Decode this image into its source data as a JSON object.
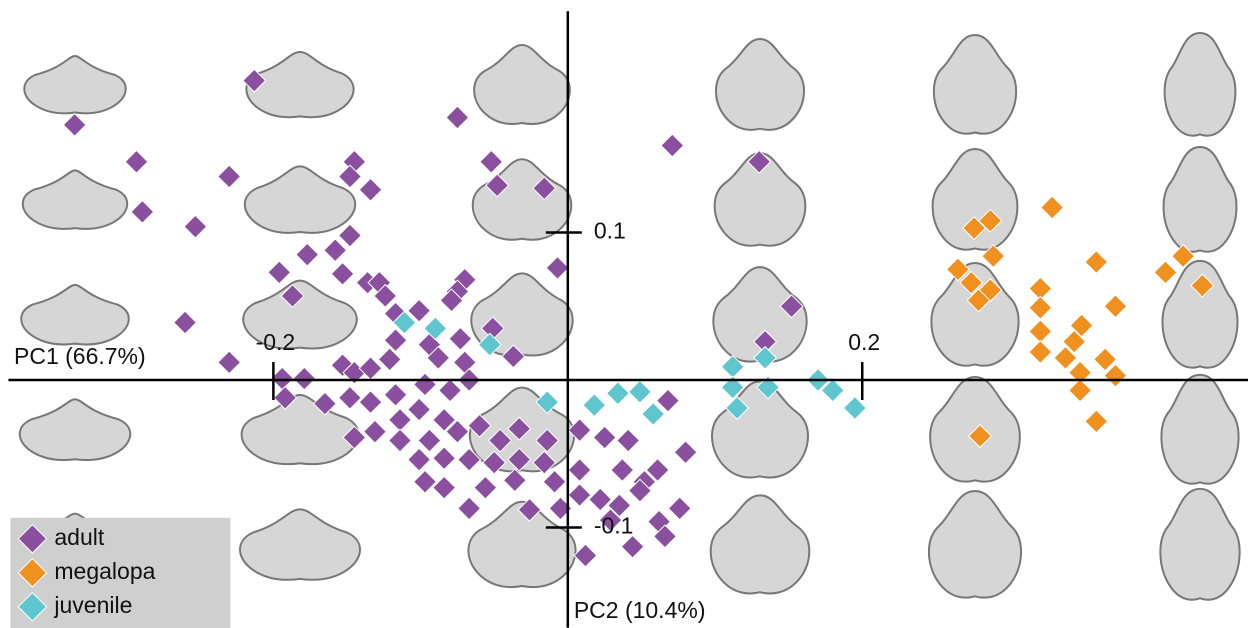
{
  "chart_data": {
    "type": "scatter",
    "xlabel": "PC1 (66.7%)",
    "ylabel": "PC2 (10.4%)",
    "xlim": [
      -0.38,
      0.46
    ],
    "ylim": [
      -0.168,
      0.25
    ],
    "xticks": [
      -0.2,
      0.2
    ],
    "yticks": [
      -0.1,
      0.1
    ],
    "legend": "lower left",
    "series": [
      {
        "name": "adult",
        "color": "#8b4f9f",
        "x": [
          -0.335,
          -0.213,
          -0.075,
          0.071,
          0.13,
          -0.293,
          -0.23,
          -0.289,
          -0.253,
          -0.145,
          -0.148,
          -0.134,
          -0.052,
          -0.048,
          -0.016,
          -0.148,
          -0.158,
          -0.177,
          -0.196,
          -0.153,
          -0.187,
          -0.26,
          -0.23,
          -0.136,
          -0.128,
          -0.124,
          -0.117,
          -0.101,
          -0.07,
          -0.075,
          -0.079,
          -0.007,
          -0.051,
          -0.037,
          0.152,
          0.134,
          0.068,
          -0.117,
          -0.094,
          -0.073,
          -0.121,
          -0.088,
          -0.07,
          -0.153,
          -0.145,
          -0.134,
          -0.194,
          -0.179,
          -0.192,
          -0.165,
          -0.148,
          -0.134,
          -0.117,
          -0.097,
          -0.08,
          -0.067,
          -0.114,
          -0.101,
          -0.084,
          -0.131,
          -0.145,
          -0.114,
          -0.094,
          -0.075,
          -0.06,
          -0.046,
          -0.033,
          -0.014,
          0.008,
          0.025,
          0.041,
          -0.101,
          -0.084,
          -0.067,
          -0.05,
          -0.033,
          -0.016,
          -0.097,
          -0.084,
          -0.056,
          -0.036,
          -0.009,
          0.008,
          0.037,
          0.061,
          0.08,
          0.052,
          -0.067,
          -0.005,
          0.008,
          0.022,
          0.035,
          0.049,
          0.076,
          0.062,
          0.029,
          0.066,
          0.044,
          0.012,
          -0.026
        ],
        "y": [
          0.173,
          0.203,
          0.178,
          0.159,
          0.148,
          0.148,
          0.138,
          0.114,
          0.104,
          0.148,
          0.138,
          0.129,
          0.148,
          0.132,
          0.13,
          0.098,
          0.088,
          0.085,
          0.073,
          0.072,
          0.057,
          0.039,
          0.012,
          0.066,
          0.066,
          0.057,
          0.045,
          0.047,
          0.068,
          0.06,
          0.054,
          0.076,
          0.035,
          0.016,
          0.05,
          0.026,
          -0.014,
          0.027,
          0.024,
          0.028,
          0.014,
          0.015,
          0.012,
          0.01,
          0.005,
          0.008,
          0.001,
          0.001,
          -0.012,
          -0.016,
          -0.012,
          -0.015,
          -0.01,
          -0.003,
          -0.007,
          0,
          -0.027,
          -0.02,
          -0.027,
          -0.035,
          -0.039,
          -0.041,
          -0.041,
          -0.035,
          -0.031,
          -0.041,
          -0.033,
          -0.041,
          -0.034,
          -0.039,
          -0.041,
          -0.054,
          -0.053,
          -0.054,
          -0.056,
          -0.054,
          -0.056,
          -0.069,
          -0.073,
          -0.073,
          -0.068,
          -0.069,
          -0.061,
          -0.061,
          -0.061,
          -0.049,
          -0.069,
          -0.087,
          -0.087,
          -0.078,
          -0.081,
          -0.085,
          -0.075,
          -0.087,
          -0.096,
          -0.095,
          -0.106,
          -0.113,
          -0.119,
          -0.088
        ]
      },
      {
        "name": "megalopa",
        "color": "#f0901f",
        "x": [
          0.276,
          0.287,
          0.329,
          0.289,
          0.265,
          0.274,
          0.287,
          0.279,
          0.321,
          0.359,
          0.418,
          0.406,
          0.431,
          0.372,
          0.321,
          0.321,
          0.349,
          0.344,
          0.321,
          0.338,
          0.365,
          0.372,
          0.348,
          0.348,
          0.359,
          0.28
        ],
        "y": [
          0.103,
          0.108,
          0.117,
          0.084,
          0.075,
          0.066,
          0.061,
          0.054,
          0.062,
          0.08,
          0.084,
          0.073,
          0.064,
          0.05,
          0.049,
          0.033,
          0.037,
          0.026,
          0.019,
          0.015,
          0.014,
          0.003,
          0.005,
          -0.007,
          -0.028,
          -0.038
        ]
      },
      {
        "name": "juvenile",
        "color": "#5fc6d0",
        "x": [
          -0.111,
          -0.09,
          -0.053,
          -0.014,
          0.018,
          0.034,
          0.049,
          0.058,
          0.112,
          0.134,
          0.112,
          0.136,
          0.115,
          0.17,
          0.18,
          0.195
        ],
        "y": [
          0.039,
          0.035,
          0.024,
          -0.015,
          -0.017,
          -0.009,
          -0.008,
          -0.023,
          0.009,
          0.015,
          -0.005,
          -0.005,
          -0.019,
          0,
          -0.007,
          -0.019
        ]
      }
    ]
  }
}
